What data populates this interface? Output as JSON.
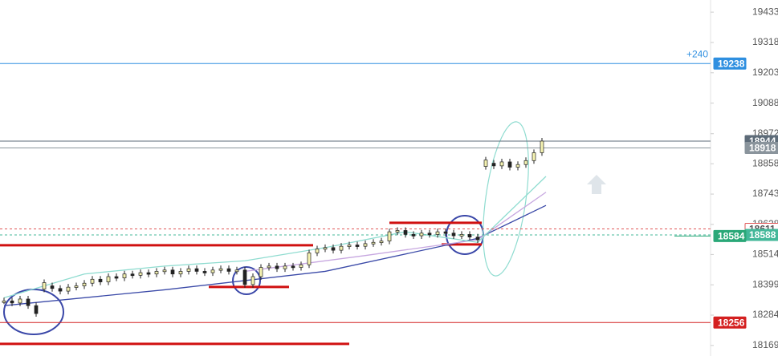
{
  "chart_data": {
    "type": "candlestick",
    "ylim": [
      18129,
      19479
    ],
    "yticks": [
      19433,
      19318,
      19203,
      19088,
      18972,
      18858,
      18743,
      18628,
      18514,
      18399,
      18284,
      18169
    ],
    "up_color": "#f4f2b0",
    "down_color": "#222222",
    "values": [
      18338,
      18330,
      18345,
      18320,
      18290,
      18395,
      18385,
      18375,
      18390,
      18395,
      18405,
      18420,
      18410,
      18430,
      18425,
      18440,
      18435,
      18445,
      18440,
      18450,
      18455,
      18440,
      18450,
      18460,
      18450,
      18445,
      18455,
      18460,
      18450,
      18455,
      18400,
      18430,
      18465,
      18470,
      18460,
      18470,
      18465,
      18475,
      18520,
      18535,
      18540,
      18530,
      18545,
      18550,
      18545,
      18555,
      18560,
      18565,
      18600,
      18605,
      18590,
      18585,
      18595,
      18590,
      18600,
      18595,
      18585,
      18590,
      18580,
      18570,
      18860,
      18850,
      18865,
      18845,
      18855,
      18870,
      18900,
      18944
    ],
    "overlays": [
      {
        "color": "#3b4aa8",
        "x": [
          0,
          20,
          40,
          59,
          67.5
        ],
        "values": [
          18320,
          18380,
          18450,
          18575,
          18700
        ]
      },
      {
        "color": "#c7a7e0",
        "x": [
          30,
          45,
          59,
          67.5
        ],
        "values": [
          18450,
          18510,
          18570,
          18750
        ]
      },
      {
        "color": "#8fdcd0",
        "x": [
          0,
          10,
          20,
          30,
          40,
          50,
          59,
          67.5
        ],
        "values": [
          18350,
          18440,
          18470,
          18490,
          18540,
          18600,
          18560,
          18810
        ]
      }
    ],
    "levels": [
      {
        "value": 18549,
        "from": -0.5,
        "to": 38.5
      },
      {
        "value": 18391,
        "from": 25.5,
        "to": 35.5
      },
      {
        "value": 18175,
        "from": -0.5,
        "to": 43
      },
      {
        "value": 18634,
        "from": 48,
        "to": 59.5
      },
      {
        "value": 18552,
        "from": 54.5,
        "to": 59.5
      }
    ],
    "price_lines": [
      {
        "value": 19238,
        "color": "#2f8fe0",
        "tag_position": "left",
        "note": "+240"
      },
      {
        "value": 18944,
        "color": "#5d6b78",
        "tag_position": "right"
      },
      {
        "value": 18918,
        "color": "#8a949c",
        "tag_position": "right"
      },
      {
        "value": 18611,
        "color": "#e05555",
        "tag_position": "right",
        "dashed": true
      },
      {
        "value": 18588,
        "color": "#44b89a",
        "tag_position": "right",
        "dashed": true
      },
      {
        "value": 18584,
        "color": "#2aa878",
        "tag_position": "left"
      },
      {
        "value": 18256,
        "color": "#d42020",
        "tag_position": "left"
      }
    ]
  }
}
